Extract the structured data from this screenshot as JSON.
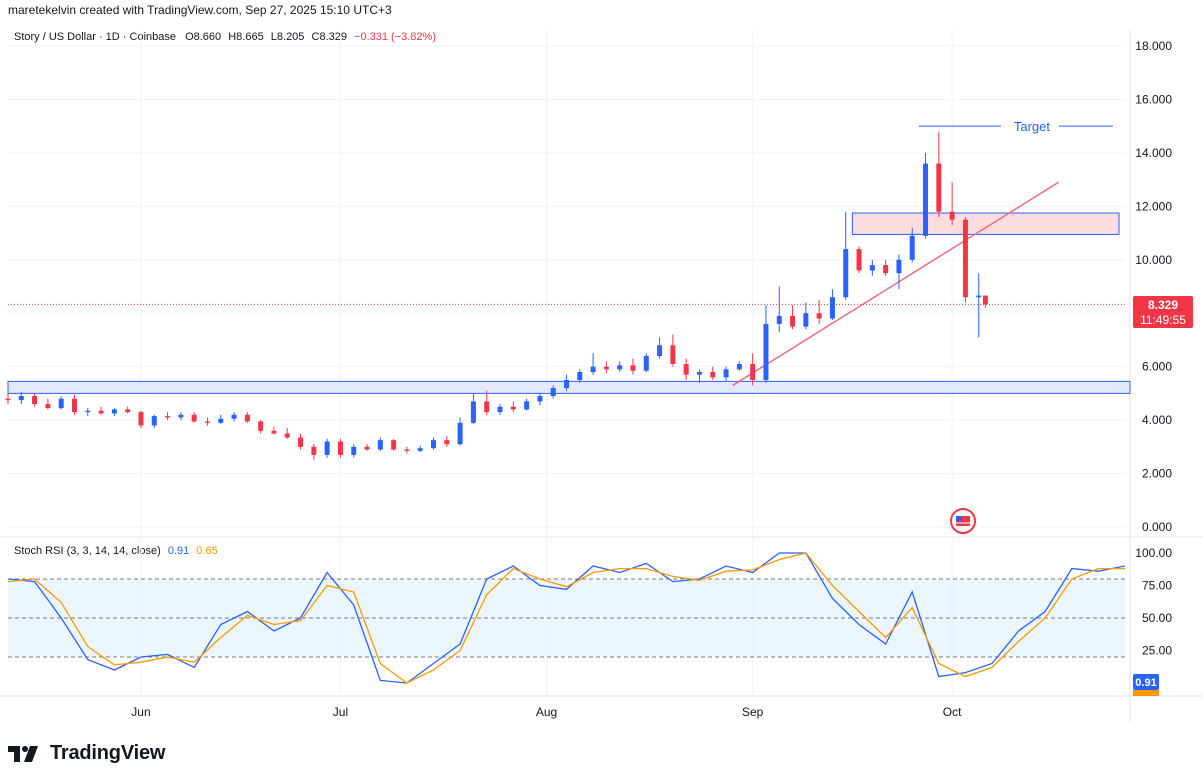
{
  "header": {
    "attribution": "maretekelvin created with TradingView.com, Sep 27, 2025 15:10 UTC+3"
  },
  "legend": {
    "symbol": "Story / US Dollar · 1D · Coinbase",
    "o_label": "O",
    "o_value": "8.660",
    "h_label": "H",
    "h_value": "8.665",
    "l_label": "L",
    "l_value": "8.205",
    "c_label": "C",
    "c_value": "8.329",
    "change": "−0.331 (−3.82%)"
  },
  "rsi_legend": {
    "name": "Stoch RSI (3, 3, 14, 14, close)",
    "k_value": "0.91",
    "d_value": "0.65"
  },
  "price_label": {
    "price": "8.329",
    "countdown": "11:49:55"
  },
  "rsi_badge": {
    "k": "0.91"
  },
  "annotations": {
    "target": "Target"
  },
  "footer": {
    "brand": "TradingView"
  },
  "colors": {
    "up": "#2962ff",
    "down": "#f23645",
    "k_line": "#2962ff",
    "d_line": "#ff9800",
    "zone_fill": "#e3e8fd",
    "resistance_fill": "#fbdcdf",
    "trendline": "#f06b7f"
  },
  "chart_data": [
    {
      "type": "candlestick",
      "title": "Story / US Dollar · 1D · Coinbase",
      "ylim": [
        0,
        18
      ],
      "yticks": [
        "18.000",
        "16.000",
        "14.000",
        "12.000",
        "10.000",
        "8.000",
        "6.000",
        "4.000",
        "2.000",
        "0.000"
      ],
      "xticks": [
        "Jun",
        "Jul",
        "Aug",
        "Sep",
        "Oct"
      ],
      "x_start": "2025-05-12",
      "x_end": "2025-10-27",
      "candles": [
        {
          "d": "2025-05-12",
          "o": 4.8,
          "h": 5.0,
          "l": 4.6,
          "c": 4.75
        },
        {
          "d": "2025-05-14",
          "o": 4.75,
          "h": 5.05,
          "l": 4.6,
          "c": 4.9
        },
        {
          "d": "2025-05-16",
          "o": 4.9,
          "h": 5.0,
          "l": 4.5,
          "c": 4.6
        },
        {
          "d": "2025-05-18",
          "o": 4.6,
          "h": 4.8,
          "l": 4.4,
          "c": 4.45
        },
        {
          "d": "2025-05-20",
          "o": 4.45,
          "h": 4.9,
          "l": 4.4,
          "c": 4.8
        },
        {
          "d": "2025-05-22",
          "o": 4.8,
          "h": 4.95,
          "l": 4.2,
          "c": 4.3
        },
        {
          "d": "2025-05-24",
          "o": 4.3,
          "h": 4.45,
          "l": 4.15,
          "c": 4.35
        },
        {
          "d": "2025-05-26",
          "o": 4.35,
          "h": 4.5,
          "l": 4.2,
          "c": 4.25
        },
        {
          "d": "2025-05-28",
          "o": 4.25,
          "h": 4.45,
          "l": 4.15,
          "c": 4.4
        },
        {
          "d": "2025-05-30",
          "o": 4.4,
          "h": 4.5,
          "l": 4.25,
          "c": 4.3
        },
        {
          "d": "2025-06-01",
          "o": 4.3,
          "h": 4.35,
          "l": 3.7,
          "c": 3.8
        },
        {
          "d": "2025-06-03",
          "o": 3.8,
          "h": 4.2,
          "l": 3.7,
          "c": 4.15
        },
        {
          "d": "2025-06-05",
          "o": 4.15,
          "h": 4.3,
          "l": 4.0,
          "c": 4.1
        },
        {
          "d": "2025-06-07",
          "o": 4.1,
          "h": 4.3,
          "l": 4.0,
          "c": 4.2
        },
        {
          "d": "2025-06-09",
          "o": 4.2,
          "h": 4.3,
          "l": 3.9,
          "c": 3.95
        },
        {
          "d": "2025-06-11",
          "o": 3.95,
          "h": 4.1,
          "l": 3.8,
          "c": 3.9
        },
        {
          "d": "2025-06-13",
          "o": 3.9,
          "h": 4.2,
          "l": 3.85,
          "c": 4.05
        },
        {
          "d": "2025-06-15",
          "o": 4.05,
          "h": 4.3,
          "l": 3.95,
          "c": 4.2
        },
        {
          "d": "2025-06-17",
          "o": 4.2,
          "h": 4.3,
          "l": 3.9,
          "c": 3.95
        },
        {
          "d": "2025-06-19",
          "o": 3.95,
          "h": 4.0,
          "l": 3.5,
          "c": 3.6
        },
        {
          "d": "2025-06-21",
          "o": 3.6,
          "h": 3.75,
          "l": 3.45,
          "c": 3.5
        },
        {
          "d": "2025-06-23",
          "o": 3.5,
          "h": 3.7,
          "l": 3.3,
          "c": 3.35
        },
        {
          "d": "2025-06-25",
          "o": 3.35,
          "h": 3.5,
          "l": 2.9,
          "c": 3.0
        },
        {
          "d": "2025-06-27",
          "o": 3.0,
          "h": 3.1,
          "l": 2.5,
          "c": 2.7
        },
        {
          "d": "2025-06-29",
          "o": 2.7,
          "h": 3.3,
          "l": 2.6,
          "c": 3.2
        },
        {
          "d": "2025-07-01",
          "o": 3.2,
          "h": 3.3,
          "l": 2.6,
          "c": 2.7
        },
        {
          "d": "2025-07-03",
          "o": 2.7,
          "h": 3.1,
          "l": 2.6,
          "c": 3.0
        },
        {
          "d": "2025-07-05",
          "o": 3.0,
          "h": 3.1,
          "l": 2.85,
          "c": 2.9
        },
        {
          "d": "2025-07-07",
          "o": 2.9,
          "h": 3.35,
          "l": 2.85,
          "c": 3.25
        },
        {
          "d": "2025-07-09",
          "o": 3.25,
          "h": 3.3,
          "l": 2.85,
          "c": 2.9
        },
        {
          "d": "2025-07-11",
          "o": 2.9,
          "h": 3.0,
          "l": 2.75,
          "c": 2.85
        },
        {
          "d": "2025-07-13",
          "o": 2.85,
          "h": 3.05,
          "l": 2.8,
          "c": 2.95
        },
        {
          "d": "2025-07-15",
          "o": 2.95,
          "h": 3.35,
          "l": 2.9,
          "c": 3.25
        },
        {
          "d": "2025-07-17",
          "o": 3.25,
          "h": 3.4,
          "l": 3.0,
          "c": 3.1
        },
        {
          "d": "2025-07-19",
          "o": 3.1,
          "h": 4.1,
          "l": 3.05,
          "c": 3.9
        },
        {
          "d": "2025-07-21",
          "o": 3.9,
          "h": 5.0,
          "l": 3.85,
          "c": 4.7
        },
        {
          "d": "2025-07-23",
          "o": 4.7,
          "h": 5.1,
          "l": 4.2,
          "c": 4.3
        },
        {
          "d": "2025-07-25",
          "o": 4.3,
          "h": 4.6,
          "l": 4.2,
          "c": 4.5
        },
        {
          "d": "2025-07-27",
          "o": 4.5,
          "h": 4.7,
          "l": 4.3,
          "c": 4.4
        },
        {
          "d": "2025-07-29",
          "o": 4.4,
          "h": 4.8,
          "l": 4.35,
          "c": 4.7
        },
        {
          "d": "2025-07-31",
          "o": 4.7,
          "h": 5.0,
          "l": 4.55,
          "c": 4.9
        },
        {
          "d": "2025-08-02",
          "o": 4.9,
          "h": 5.3,
          "l": 4.8,
          "c": 5.2
        },
        {
          "d": "2025-08-04",
          "o": 5.2,
          "h": 5.7,
          "l": 5.1,
          "c": 5.5
        },
        {
          "d": "2025-08-06",
          "o": 5.5,
          "h": 5.9,
          "l": 5.4,
          "c": 5.8
        },
        {
          "d": "2025-08-08",
          "o": 5.8,
          "h": 6.5,
          "l": 5.7,
          "c": 6.0
        },
        {
          "d": "2025-08-10",
          "o": 6.0,
          "h": 6.2,
          "l": 5.75,
          "c": 5.9
        },
        {
          "d": "2025-08-12",
          "o": 5.9,
          "h": 6.2,
          "l": 5.8,
          "c": 6.05
        },
        {
          "d": "2025-08-14",
          "o": 6.05,
          "h": 6.3,
          "l": 5.7,
          "c": 5.85
        },
        {
          "d": "2025-08-16",
          "o": 5.85,
          "h": 6.5,
          "l": 5.8,
          "c": 6.4
        },
        {
          "d": "2025-08-18",
          "o": 6.4,
          "h": 7.1,
          "l": 6.3,
          "c": 6.8
        },
        {
          "d": "2025-08-20",
          "o": 6.8,
          "h": 7.2,
          "l": 6.0,
          "c": 6.1
        },
        {
          "d": "2025-08-22",
          "o": 6.1,
          "h": 6.3,
          "l": 5.5,
          "c": 5.7
        },
        {
          "d": "2025-08-24",
          "o": 5.7,
          "h": 5.9,
          "l": 5.4,
          "c": 5.8
        },
        {
          "d": "2025-08-26",
          "o": 5.8,
          "h": 6.0,
          "l": 5.5,
          "c": 5.6
        },
        {
          "d": "2025-08-28",
          "o": 5.6,
          "h": 6.0,
          "l": 5.45,
          "c": 5.9
        },
        {
          "d": "2025-08-30",
          "o": 5.9,
          "h": 6.2,
          "l": 5.85,
          "c": 6.1
        },
        {
          "d": "2025-09-01",
          "o": 6.1,
          "h": 6.5,
          "l": 5.3,
          "c": 5.5
        },
        {
          "d": "2025-09-03",
          "o": 5.5,
          "h": 8.3,
          "l": 5.4,
          "c": 7.6
        },
        {
          "d": "2025-09-05",
          "o": 7.6,
          "h": 9.0,
          "l": 7.3,
          "c": 7.9
        },
        {
          "d": "2025-09-07",
          "o": 7.9,
          "h": 8.3,
          "l": 7.4,
          "c": 7.5
        },
        {
          "d": "2025-09-09",
          "o": 7.5,
          "h": 8.4,
          "l": 7.4,
          "c": 8.0
        },
        {
          "d": "2025-09-11",
          "o": 8.0,
          "h": 8.5,
          "l": 7.6,
          "c": 7.8
        },
        {
          "d": "2025-09-13",
          "o": 7.8,
          "h": 8.9,
          "l": 7.75,
          "c": 8.6
        },
        {
          "d": "2025-09-15",
          "o": 8.6,
          "h": 11.8,
          "l": 8.5,
          "c": 10.4
        },
        {
          "d": "2025-09-17",
          "o": 10.4,
          "h": 10.5,
          "l": 9.5,
          "c": 9.6
        },
        {
          "d": "2025-09-19",
          "o": 9.6,
          "h": 10.0,
          "l": 9.4,
          "c": 9.8
        },
        {
          "d": "2025-09-21",
          "o": 9.8,
          "h": 10.0,
          "l": 9.4,
          "c": 9.5
        },
        {
          "d": "2025-09-23",
          "o": 9.5,
          "h": 10.2,
          "l": 8.9,
          "c": 10.0
        },
        {
          "d": "2025-09-25",
          "o": 10.0,
          "h": 11.2,
          "l": 9.9,
          "c": 10.9
        },
        {
          "d": "2025-09-27",
          "o": 10.9,
          "h": 14.0,
          "l": 10.8,
          "c": 13.6
        },
        {
          "d": "2025-09-29",
          "o": 13.6,
          "h": 14.8,
          "l": 11.6,
          "c": 11.8
        },
        {
          "d": "2025-10-01",
          "o": 11.8,
          "h": 12.9,
          "l": 11.3,
          "c": 11.5
        },
        {
          "d": "2025-10-03",
          "o": 11.5,
          "h": 11.6,
          "l": 8.4,
          "c": 8.6
        },
        {
          "d": "2025-10-05",
          "o": 8.6,
          "h": 9.5,
          "l": 7.1,
          "c": 8.66
        },
        {
          "d": "2025-10-06",
          "o": 8.66,
          "h": 8.665,
          "l": 8.205,
          "c": 8.329
        }
      ],
      "support_zone": [
        5.0,
        5.45
      ],
      "resistance_zone": [
        10.95,
        11.75
      ],
      "target_level": 15.0,
      "trendline": [
        {
          "d": "2025-08-29",
          "y": 5.3
        },
        {
          "d": "2025-10-17",
          "y": 12.9
        }
      ],
      "last_price": 8.329
    },
    {
      "type": "line",
      "title": "Stoch RSI (3, 3, 14, 14, close)",
      "ylim": [
        0,
        100
      ],
      "yticks": [
        "100.00",
        "75.00",
        "50.00",
        "25.00"
      ],
      "bands": {
        "upper": 80,
        "middle": 50,
        "lower": 20
      },
      "series": [
        {
          "name": "K",
          "values": [
            {
              "d": "2025-05-12",
              "v": 80
            },
            {
              "d": "2025-05-16",
              "v": 78
            },
            {
              "d": "2025-05-20",
              "v": 50
            },
            {
              "d": "2025-05-24",
              "v": 18
            },
            {
              "d": "2025-05-28",
              "v": 10
            },
            {
              "d": "2025-06-01",
              "v": 20
            },
            {
              "d": "2025-06-05",
              "v": 22
            },
            {
              "d": "2025-06-09",
              "v": 12
            },
            {
              "d": "2025-06-13",
              "v": 45
            },
            {
              "d": "2025-06-17",
              "v": 55
            },
            {
              "d": "2025-06-21",
              "v": 40
            },
            {
              "d": "2025-06-25",
              "v": 50
            },
            {
              "d": "2025-06-29",
              "v": 85
            },
            {
              "d": "2025-07-03",
              "v": 60
            },
            {
              "d": "2025-07-07",
              "v": 2
            },
            {
              "d": "2025-07-11",
              "v": 0
            },
            {
              "d": "2025-07-15",
              "v": 15
            },
            {
              "d": "2025-07-19",
              "v": 30
            },
            {
              "d": "2025-07-23",
              "v": 80
            },
            {
              "d": "2025-07-27",
              "v": 90
            },
            {
              "d": "2025-07-31",
              "v": 75
            },
            {
              "d": "2025-08-04",
              "v": 72
            },
            {
              "d": "2025-08-08",
              "v": 90
            },
            {
              "d": "2025-08-12",
              "v": 85
            },
            {
              "d": "2025-08-16",
              "v": 92
            },
            {
              "d": "2025-08-20",
              "v": 78
            },
            {
              "d": "2025-08-24",
              "v": 80
            },
            {
              "d": "2025-08-28",
              "v": 90
            },
            {
              "d": "2025-09-01",
              "v": 85
            },
            {
              "d": "2025-09-05",
              "v": 100
            },
            {
              "d": "2025-09-09",
              "v": 100
            },
            {
              "d": "2025-09-13",
              "v": 65
            },
            {
              "d": "2025-09-17",
              "v": 45
            },
            {
              "d": "2025-09-21",
              "v": 30
            },
            {
              "d": "2025-09-25",
              "v": 70
            },
            {
              "d": "2025-09-29",
              "v": 5
            },
            {
              "d": "2025-10-03",
              "v": 8
            },
            {
              "d": "2025-10-07",
              "v": 15
            },
            {
              "d": "2025-10-11",
              "v": 40
            },
            {
              "d": "2025-10-15",
              "v": 55
            },
            {
              "d": "2025-10-19",
              "v": 88
            },
            {
              "d": "2025-10-23",
              "v": 86
            },
            {
              "d": "2025-10-27",
              "v": 90
            }
          ]
        },
        {
          "name": "D",
          "values": [
            {
              "d": "2025-05-12",
              "v": 78
            },
            {
              "d": "2025-05-16",
              "v": 80
            },
            {
              "d": "2025-05-20",
              "v": 62
            },
            {
              "d": "2025-05-24",
              "v": 28
            },
            {
              "d": "2025-05-28",
              "v": 14
            },
            {
              "d": "2025-06-01",
              "v": 16
            },
            {
              "d": "2025-06-05",
              "v": 20
            },
            {
              "d": "2025-06-09",
              "v": 16
            },
            {
              "d": "2025-06-13",
              "v": 35
            },
            {
              "d": "2025-06-17",
              "v": 52
            },
            {
              "d": "2025-06-21",
              "v": 45
            },
            {
              "d": "2025-06-25",
              "v": 48
            },
            {
              "d": "2025-06-29",
              "v": 75
            },
            {
              "d": "2025-07-03",
              "v": 70
            },
            {
              "d": "2025-07-07",
              "v": 15
            },
            {
              "d": "2025-07-11",
              "v": 0
            },
            {
              "d": "2025-07-15",
              "v": 10
            },
            {
              "d": "2025-07-19",
              "v": 25
            },
            {
              "d": "2025-07-23",
              "v": 68
            },
            {
              "d": "2025-07-27",
              "v": 88
            },
            {
              "d": "2025-07-31",
              "v": 80
            },
            {
              "d": "2025-08-04",
              "v": 74
            },
            {
              "d": "2025-08-08",
              "v": 85
            },
            {
              "d": "2025-08-12",
              "v": 88
            },
            {
              "d": "2025-08-16",
              "v": 88
            },
            {
              "d": "2025-08-20",
              "v": 82
            },
            {
              "d": "2025-08-24",
              "v": 79
            },
            {
              "d": "2025-08-28",
              "v": 86
            },
            {
              "d": "2025-09-01",
              "v": 87
            },
            {
              "d": "2025-09-05",
              "v": 95
            },
            {
              "d": "2025-09-09",
              "v": 100
            },
            {
              "d": "2025-09-13",
              "v": 75
            },
            {
              "d": "2025-09-17",
              "v": 55
            },
            {
              "d": "2025-09-21",
              "v": 35
            },
            {
              "d": "2025-09-25",
              "v": 58
            },
            {
              "d": "2025-09-29",
              "v": 15
            },
            {
              "d": "2025-10-03",
              "v": 5
            },
            {
              "d": "2025-10-07",
              "v": 12
            },
            {
              "d": "2025-10-11",
              "v": 32
            },
            {
              "d": "2025-10-15",
              "v": 50
            },
            {
              "d": "2025-10-19",
              "v": 80
            },
            {
              "d": "2025-10-23",
              "v": 88
            },
            {
              "d": "2025-10-27",
              "v": 88
            }
          ]
        }
      ]
    }
  ]
}
